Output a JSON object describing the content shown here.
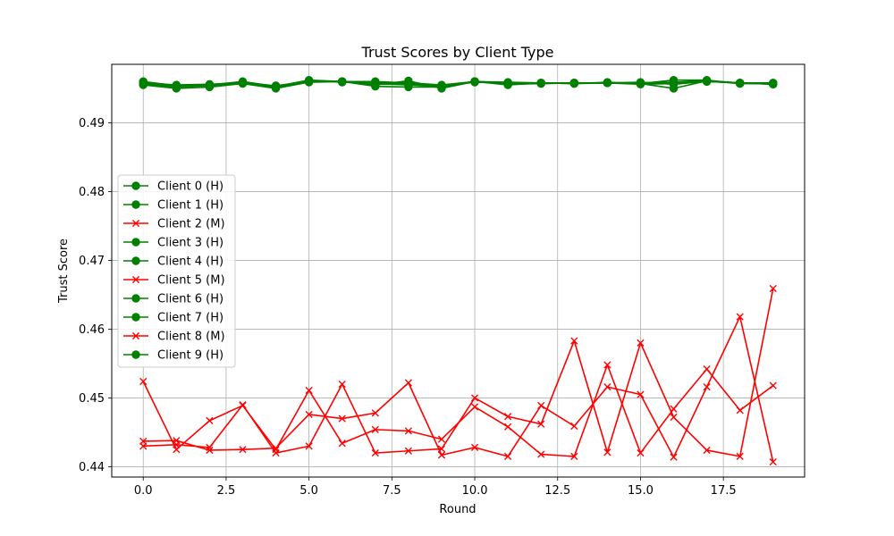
{
  "chart_data": {
    "type": "line",
    "title": "Trust Scores by Client Type",
    "xlabel": "Round",
    "ylabel": "Trust Score",
    "xlim": [
      -0.95,
      19.95
    ],
    "ylim": [
      0.4385,
      0.4985
    ],
    "xticks": [
      0.0,
      2.5,
      5.0,
      7.5,
      10.0,
      12.5,
      15.0,
      17.5
    ],
    "xtick_labels": [
      "0.0",
      "2.5",
      "5.0",
      "7.5",
      "10.0",
      "12.5",
      "15.0",
      "17.5"
    ],
    "yticks": [
      0.44,
      0.45,
      0.46,
      0.47,
      0.48,
      0.49
    ],
    "ytick_labels": [
      "0.44",
      "0.45",
      "0.46",
      "0.47",
      "0.48",
      "0.49"
    ],
    "grid": true,
    "legend_position": "center-left",
    "colors": {
      "honest": "#008000",
      "malicious": "#ff0000"
    },
    "x": [
      0,
      1,
      2,
      3,
      4,
      5,
      6,
      7,
      8,
      9,
      10,
      11,
      12,
      13,
      14,
      15,
      16,
      17,
      18,
      19
    ],
    "series": [
      {
        "name": "Client 0 (H)",
        "marker": "circle",
        "color": "#008000",
        "values": [
          0.496,
          0.4954,
          0.4955,
          0.496,
          0.4953,
          0.4962,
          0.496,
          0.496,
          0.4958,
          0.4955,
          0.496,
          0.4959,
          0.4958,
          0.4958,
          0.4958,
          0.4958,
          0.4958,
          0.496,
          0.4958,
          0.4957
        ]
      },
      {
        "name": "Client 1 (H)",
        "marker": "circle",
        "color": "#008000",
        "values": [
          0.4958,
          0.4953,
          0.4955,
          0.4958,
          0.4952,
          0.4961,
          0.496,
          0.4957,
          0.4955,
          0.4953,
          0.496,
          0.4958,
          0.4957,
          0.4958,
          0.4958,
          0.4956,
          0.4957,
          0.496,
          0.4958,
          0.4958
        ]
      },
      {
        "name": "Client 2 (M)",
        "marker": "x",
        "color": "#ff0000",
        "values": [
          0.443,
          0.4432,
          0.4428,
          0.449,
          0.442,
          0.443,
          0.452,
          0.442,
          0.4423,
          0.4426,
          0.45,
          0.4473,
          0.4462,
          0.4583,
          0.4421,
          0.458,
          0.4472,
          0.4424,
          0.4415,
          0.4659
        ]
      },
      {
        "name": "Client 3 (H)",
        "marker": "circle",
        "color": "#008000",
        "values": [
          0.4957,
          0.4952,
          0.4954,
          0.4959,
          0.4953,
          0.496,
          0.496,
          0.4955,
          0.4961,
          0.495,
          0.496,
          0.4956,
          0.4957,
          0.4958,
          0.4958,
          0.4957,
          0.4962,
          0.4962,
          0.4957,
          0.4958
        ]
      },
      {
        "name": "Client 4 (H)",
        "marker": "circle",
        "color": "#008000",
        "values": [
          0.4955,
          0.495,
          0.4952,
          0.4957,
          0.495,
          0.4959,
          0.496,
          0.4953,
          0.4952,
          0.4952,
          0.496,
          0.4955,
          0.4958,
          0.4957,
          0.4959,
          0.4957,
          0.495,
          0.4961,
          0.4958,
          0.4956
        ]
      },
      {
        "name": "Client 5 (M)",
        "marker": "x",
        "color": "#ff0000",
        "values": [
          0.4524,
          0.4425,
          0.4467,
          0.4489,
          0.4425,
          0.4511,
          0.4434,
          0.4454,
          0.4452,
          0.444,
          0.4487,
          0.4458,
          0.4418,
          0.4415,
          0.4548,
          0.442,
          0.4484,
          0.4542,
          0.4482,
          0.4518
        ]
      },
      {
        "name": "Client 6 (H)",
        "marker": "circle",
        "color": "#008000",
        "values": [
          0.4958,
          0.4955,
          0.4956,
          0.4958,
          0.4954,
          0.496,
          0.496,
          0.4958,
          0.4957,
          0.4954,
          0.496,
          0.4958,
          0.4958,
          0.4957,
          0.4958,
          0.4959,
          0.4956,
          0.496,
          0.4958,
          0.4957
        ]
      },
      {
        "name": "Client 7 (H)",
        "marker": "circle",
        "color": "#008000",
        "values": [
          0.4959,
          0.4954,
          0.4955,
          0.4959,
          0.4953,
          0.4961,
          0.4959,
          0.4958,
          0.4958,
          0.4954,
          0.4959,
          0.4958,
          0.4958,
          0.4958,
          0.4958,
          0.4958,
          0.4958,
          0.4961,
          0.4957,
          0.4957
        ]
      },
      {
        "name": "Client 8 (M)",
        "marker": "x",
        "color": "#ff0000",
        "values": [
          0.4437,
          0.4438,
          0.4424,
          0.4425,
          0.4427,
          0.4476,
          0.447,
          0.4478,
          0.4522,
          0.4417,
          0.4428,
          0.4415,
          0.4489,
          0.4459,
          0.4516,
          0.4505,
          0.4414,
          0.4516,
          0.4618,
          0.4407
        ]
      },
      {
        "name": "Client 9 (H)",
        "marker": "circle",
        "color": "#008000",
        "values": [
          0.4956,
          0.4953,
          0.4954,
          0.4958,
          0.4952,
          0.496,
          0.496,
          0.4956,
          0.4956,
          0.4953,
          0.496,
          0.4957,
          0.4958,
          0.4958,
          0.4958,
          0.4958,
          0.4959,
          0.4961,
          0.4958,
          0.4956
        ]
      }
    ]
  }
}
